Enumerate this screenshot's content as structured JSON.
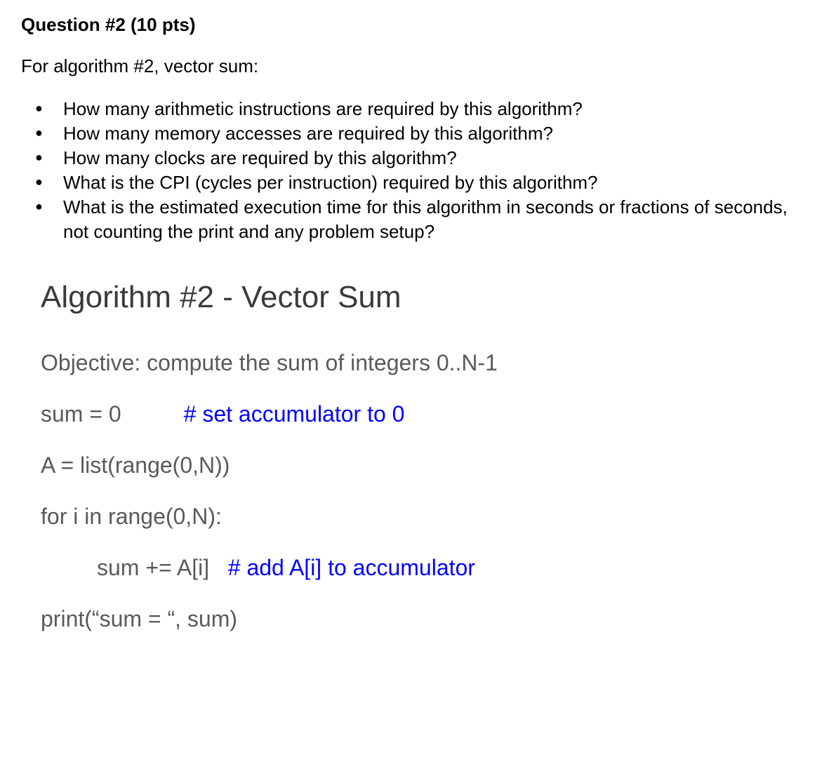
{
  "question": {
    "title": "Question #2 (10 pts)",
    "intro": "For algorithm #2, vector sum:",
    "bullets": [
      "How many arithmetic instructions are required by this algorithm?",
      "How many memory accesses are required by this algorithm?",
      "How many clocks are required by this algorithm?",
      "What is the CPI (cycles per instruction) required by this algorithm?",
      "What is the estimated execution time for this algorithm in seconds or fractions of seconds, not counting the print and any problem setup?"
    ]
  },
  "algorithm": {
    "title": "Algorithm #2 - Vector Sum",
    "objective": "Objective: compute the sum of integers 0..N-1",
    "lines": {
      "l1_code": "sum = 0          ",
      "l1_comment": "# set accumulator to 0",
      "l2_code": "A = list(range(0,N))",
      "l3_code": "for i in range(0,N):",
      "l4_code": "sum += A[i]   ",
      "l4_comment": "# add A[i] to accumulator",
      "l5_code": "print(“sum = “, sum)"
    }
  },
  "colors": {
    "text_black": "#000000",
    "text_gray": "#5a5a5a",
    "title_gray": "#3a3a3a",
    "comment_blue": "#0000ff",
    "background": "#ffffff"
  },
  "typography": {
    "question_fontsize": 26,
    "algo_title_fontsize": 44,
    "code_fontsize": 32,
    "font_family": "Arial"
  }
}
